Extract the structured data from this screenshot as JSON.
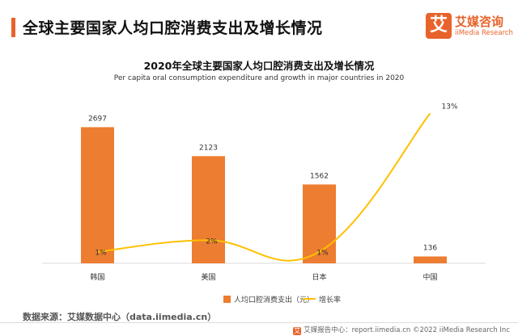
{
  "header": {
    "title": "全球主要国家人均口腔消费支出及增长情况"
  },
  "brand": {
    "mark": "艾",
    "name_cn": "艾媒咨询",
    "name_en": "iiMedia Research"
  },
  "chart_data": {
    "type": "bar",
    "title": "2020年全球主要国家人均口腔消费支出及增长情况",
    "subtitle": "Per capita oral consumption expenditure and growth in major countries in 2020",
    "categories": [
      "韩国",
      "美国",
      "日本",
      "中国"
    ],
    "series": [
      {
        "name": "人均口腔消费支出（元）",
        "type": "bar",
        "values": [
          2697,
          2123,
          1562,
          136
        ],
        "labels": [
          "2697",
          "2123",
          "1562",
          "136"
        ],
        "color": "#ed7d31"
      },
      {
        "name": "增长率",
        "type": "line",
        "values": [
          1,
          2,
          1,
          13
        ],
        "labels": [
          "1%",
          "2%",
          "1%",
          "13%"
        ],
        "unit": "%",
        "color": "#ffc000"
      }
    ],
    "ylim": [
      0,
      3200
    ],
    "y2lim": [
      0,
      14
    ],
    "grid": false,
    "legend_position": "bottom"
  },
  "footer": {
    "source": "数据来源：艾媒数据中心（data.iimedia.cn）",
    "credit": "艾媒报告中心：report.iimedia.cn ©2022  iiMedia Research  Inc"
  }
}
